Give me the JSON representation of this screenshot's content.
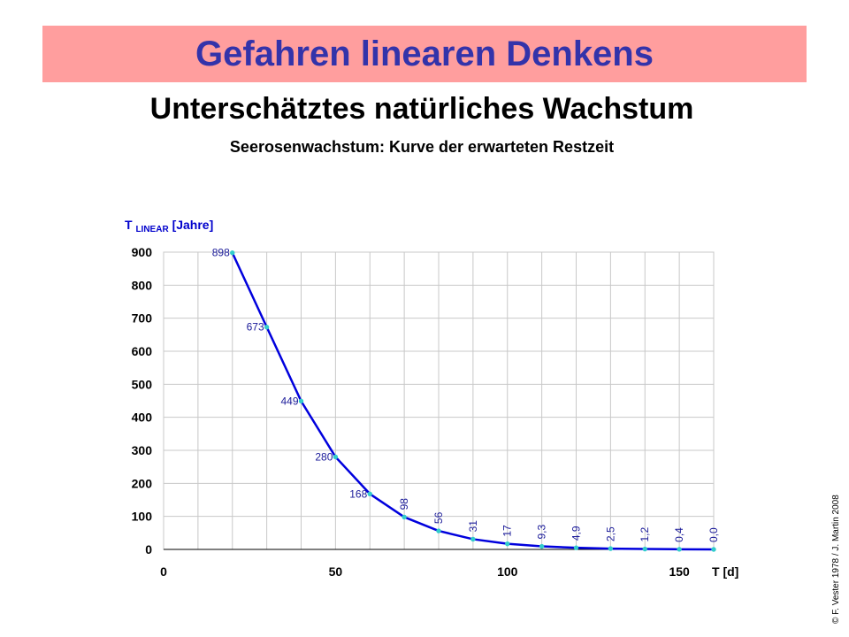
{
  "header": {
    "title": "Gefahren linearen Denkens",
    "subtitle": "Unterschätztes natürliches Wachstum",
    "caption": "Seerosenwachstum:  Kurve der erwarteten Restzeit"
  },
  "credit": "© F. Vester 1978  / J. Martin 2008",
  "colors": {
    "banner_bg": "#ff9e9e",
    "banner_text": "#3333aa",
    "curve": "#0000dd",
    "markers": "#33cccc",
    "axis_label": "#0000cc",
    "data_label": "#1a1a99"
  },
  "chart_data": {
    "type": "line",
    "title": "",
    "ylabel_main": "T",
    "ylabel_sub": "LINEAR",
    "ylabel_unit": "[Jahre]",
    "xlabel": "T  [d]",
    "xlim": [
      0,
      160
    ],
    "ylim": [
      0,
      900
    ],
    "grid": true,
    "x_minor_step": 10,
    "x_ticks": [
      0,
      50,
      100,
      150
    ],
    "y_ticks": [
      0,
      100,
      200,
      300,
      400,
      500,
      600,
      700,
      800,
      900
    ],
    "series": [
      {
        "x": [
          20,
          30,
          40,
          50,
          60,
          70,
          80,
          90,
          100,
          110,
          120,
          130,
          140,
          150,
          160
        ],
        "values": [
          898,
          673,
          449,
          280,
          168,
          98,
          56,
          31,
          17,
          9.3,
          4.9,
          2.5,
          1.2,
          0.4,
          0.0
        ],
        "labels": [
          "898",
          "673",
          "449",
          "280",
          "168",
          "98",
          "56",
          "31",
          "17",
          "9,3",
          "4,9",
          "2,5",
          "1,2",
          "0,4",
          "0,0"
        ]
      }
    ]
  }
}
